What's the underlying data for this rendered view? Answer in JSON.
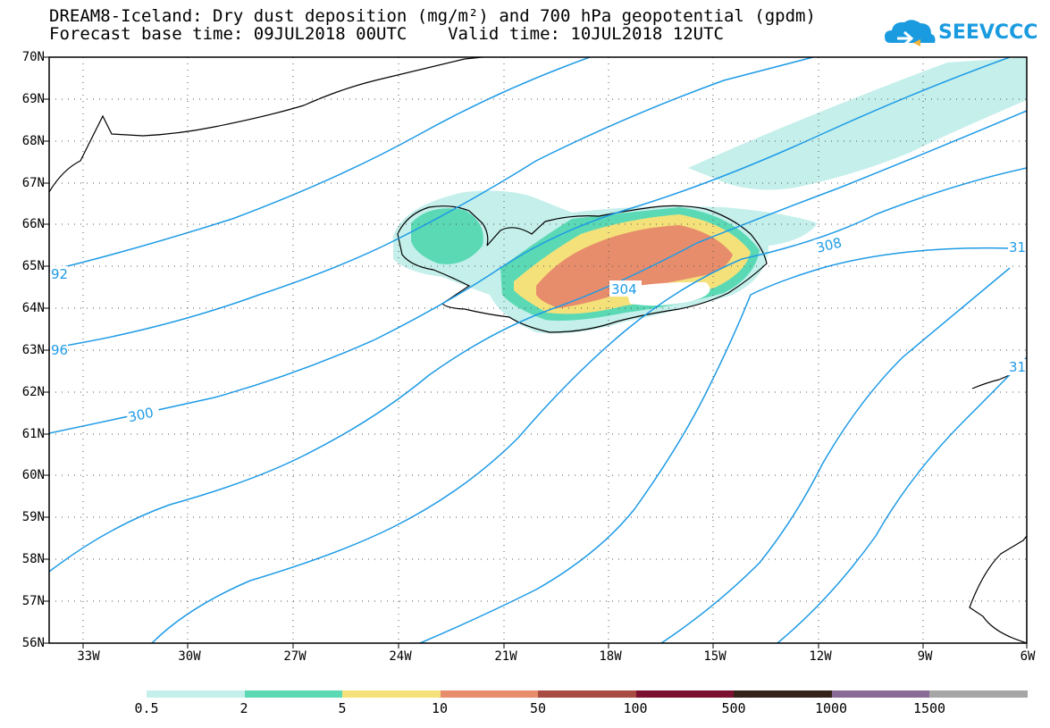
{
  "title": {
    "line1": "DREAM8-Iceland: Dry dust deposition (mg/m²) and 700 hPa geopotential (gpdm)",
    "line2": "Forecast base time: 09JUL2018 00UTC    Valid time: 10JUL2018 12UTC"
  },
  "logo": {
    "text": "SEEVCCC",
    "icon": "cloud-icon"
  },
  "colors": {
    "contour": "#1e9be6",
    "coast": "#000000",
    "grid": "#555555",
    "levels": [
      "#c4efeb",
      "#5ad9b4",
      "#f5e17a",
      "#e88d6c",
      "#a84b42",
      "#7c1030",
      "#352318",
      "#8a6b96",
      "#a6a6a6"
    ]
  },
  "axes": {
    "lat_labels": [
      "70N",
      "69N",
      "68N",
      "67N",
      "66N",
      "65N",
      "64N",
      "63N",
      "62N",
      "61N",
      "60N",
      "59N",
      "58N",
      "57N",
      "56N"
    ],
    "lon_labels": [
      "33W",
      "30W",
      "27W",
      "24W",
      "21W",
      "18W",
      "15W",
      "12W",
      "9W",
      "6W"
    ]
  },
  "contours": {
    "labels": [
      "92",
      "96",
      "300",
      "304",
      "308",
      "31",
      "31"
    ]
  },
  "colorbar": {
    "labels": [
      "0.5",
      "2",
      "5",
      "10",
      "50",
      "100",
      "500",
      "1000",
      "1500"
    ]
  }
}
